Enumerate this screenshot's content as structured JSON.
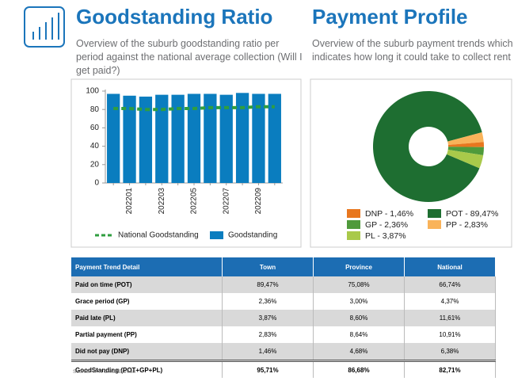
{
  "left_panel": {
    "title": "Goodstanding Ratio",
    "subtitle": "Overview of the suburb goodstanding ratio per period against the national average collection (Will I get paid?)"
  },
  "right_panel": {
    "title": "Payment Profile",
    "subtitle": "Overview of the suburb payment trends which indicates how long it could take to collect rent"
  },
  "chart_data": [
    {
      "type": "bar",
      "categories": [
        null,
        "202201",
        null,
        "202203",
        null,
        "202205",
        null,
        "202207",
        null,
        "202209",
        null
      ],
      "series": [
        {
          "name": "National Goodstanding",
          "type": "line",
          "color": "#2f9e3f",
          "values": [
            81,
            81,
            80,
            80,
            81,
            81,
            82,
            82,
            82,
            83,
            83
          ]
        },
        {
          "name": "Goodstanding",
          "type": "bar",
          "color": "#0a7dbf",
          "values": [
            97,
            95,
            94,
            96,
            96,
            97,
            97,
            96,
            98,
            97,
            97
          ]
        }
      ],
      "ylim": [
        0,
        100
      ],
      "yticks": [
        0,
        20,
        40,
        60,
        80,
        100
      ],
      "grid": false
    },
    {
      "type": "pie",
      "donut": true,
      "categories": [
        "POT - 89,47%",
        "PP - 2,83%",
        "DNP - 1,46%",
        "GP - 2,36%",
        "PL - 3,87%"
      ],
      "values": [
        89.47,
        2.83,
        1.46,
        2.36,
        3.87
      ],
      "colors": [
        "#1e6e31",
        "#f9b35a",
        "#e8771f",
        "#4f9a3b",
        "#a9c94a"
      ]
    }
  ],
  "table": {
    "header": [
      "Payment Trend Detail",
      "Town",
      "Province",
      "National"
    ],
    "rows": [
      [
        "Paid on time (POT)",
        "89,47%",
        "75,08%",
        "66,74%"
      ],
      [
        "Grace period (GP)",
        "2,36%",
        "3,00%",
        "4,37%"
      ],
      [
        "Paid late (PL)",
        "3,87%",
        "8,60%",
        "11,61%"
      ],
      [
        "Partial payment (PP)",
        "2,83%",
        "8,64%",
        "10,91%"
      ],
      [
        "Did not pay (DNP)",
        "1,46%",
        "4,68%",
        "6,38%"
      ],
      [
        "GoodStanding (POT+GP+PL)",
        "95,71%",
        "86,68%",
        "82,71%"
      ]
    ],
    "source": "Source: TPN Credit Bureau"
  }
}
